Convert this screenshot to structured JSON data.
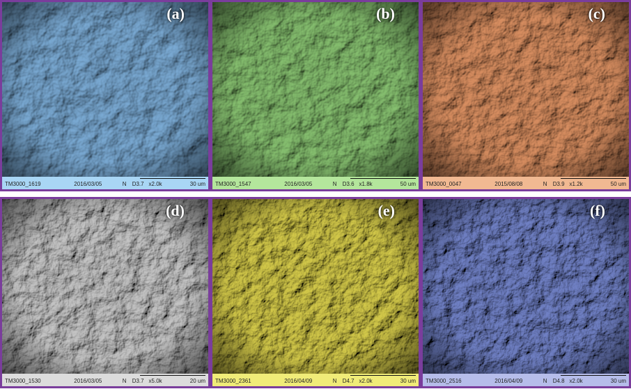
{
  "panels": [
    {
      "label": "(a)",
      "id": "TM3000_1619",
      "date": "2016/03/05",
      "mode": "N",
      "distance": "D3.7",
      "mag": "x2.0k",
      "scale": "30 um"
    },
    {
      "label": "(b)",
      "id": "TM3000_1547",
      "date": "2016/03/05",
      "mode": "N",
      "distance": "D3.6",
      "mag": "x1.8k",
      "scale": "50 um"
    },
    {
      "label": "(c)",
      "id": "TM3000_0047",
      "date": "2015/08/08",
      "mode": "N",
      "distance": "D3.9",
      "mag": "x1.2k",
      "scale": "50 um"
    },
    {
      "label": "(d)",
      "id": "TM3000_1530",
      "date": "2016/03/05",
      "mode": "N",
      "distance": "D3.7",
      "mag": "x5.0k",
      "scale": "20 um"
    },
    {
      "label": "(e)",
      "id": "TM3000_2361",
      "date": "2016/04/09",
      "mode": "N",
      "distance": "D4.7",
      "mag": "x2.0k",
      "scale": "30 um"
    },
    {
      "label": "(f)",
      "id": "TM3000_2516",
      "date": "2016/04/09",
      "mode": "N",
      "distance": "D4.8",
      "mag": "x2.0k",
      "scale": "30 um"
    }
  ]
}
